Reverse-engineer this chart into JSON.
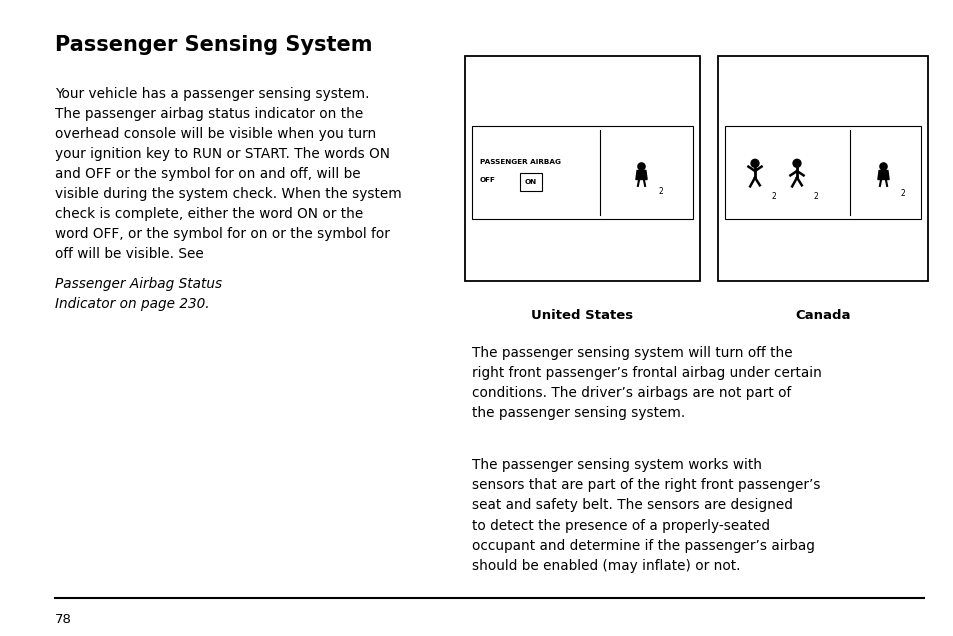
{
  "title": "Passenger Sensing System",
  "bg_color": "#ffffff",
  "text_color": "#000000",
  "page_number": "78",
  "left_text_normal": "Your vehicle has a passenger sensing system.\nThe passenger airbag status indicator on the\noverhead console will be visible when you turn\nyour ignition key to RUN or START. The words ON\nand OFF or the symbol for on and off, will be\nvisible during the system check. When the system\ncheck is complete, either the word ON or the\nword OFF, or the symbol for on or the symbol for\noff will be visible. See ",
  "left_text_italic": "Passenger Airbag Status\nIndicator on page 230.",
  "right_text1": "The passenger sensing system will turn off the\nright front passenger’s frontal airbag under certain\nconditions. The driver’s airbags are not part of\nthe passenger sensing system.",
  "right_text2": "The passenger sensing system works with\nsensors that are part of the right front passenger’s\nseat and safety belt. The sensors are designed\nto detect the presence of a properly-seated\noccupant and determine if the passenger’s airbag\nshould be enabled (may inflate) or not.",
  "us_label": "United States",
  "ca_label": "Canada",
  "footer_text": "78"
}
